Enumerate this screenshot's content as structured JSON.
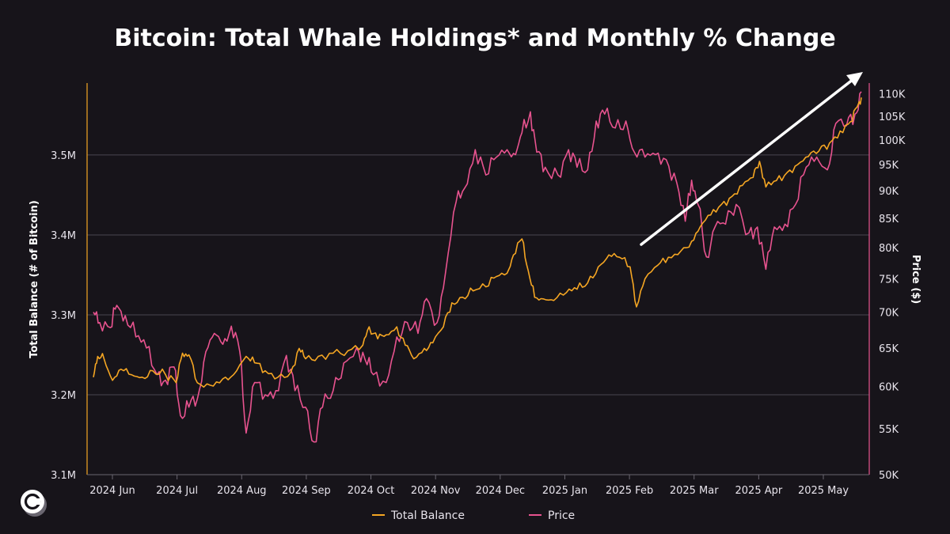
{
  "chart_data": {
    "type": "line",
    "title": "Bitcoin: Total Whale Holdings* and Monthly % Change",
    "ylabel_left": "Total Balance (# of Bitcoin)",
    "ylabel_right": "Price ($)",
    "x_ticks": [
      "2024 Jun",
      "2024 Jul",
      "2024 Aug",
      "2024 Sep",
      "2024 Oct",
      "2024 Nov",
      "2024 Dec",
      "2025 Jan",
      "2025 Feb",
      "2025 Mar",
      "2025 Apr",
      "2025 May"
    ],
    "y_left_ticks": [
      "3.1M",
      "3.2M",
      "3.3M",
      "3.4M",
      "3.5M"
    ],
    "y_left_values": [
      3100000,
      3200000,
      3300000,
      3400000,
      3500000
    ],
    "y_left_range": [
      3100000,
      3590000
    ],
    "y_right_ticks": [
      "50K",
      "55K",
      "60K",
      "65K",
      "70K",
      "75K",
      "80K",
      "85K",
      "90K",
      "95K",
      "100K",
      "105K",
      "110K"
    ],
    "y_right_values": [
      50000,
      55000,
      60000,
      65000,
      70000,
      75000,
      80000,
      85000,
      90000,
      95000,
      100000,
      105000,
      110000
    ],
    "y_right_range": [
      50000,
      112500
    ],
    "y_right_scale": "log",
    "x_range": [
      "2024-05-25",
      "2025-05-22"
    ],
    "grid": "horizontal",
    "legend_position": "bottom-center",
    "annotation": "upward-trend-arrow",
    "series": [
      {
        "name": "Total Balance",
        "axis": "left",
        "color": "#f5a623",
        "points": [
          [
            "2024-05-25",
            3222000
          ],
          [
            "2024-05-27",
            3248000
          ],
          [
            "2024-05-30",
            3245000
          ],
          [
            "2024-06-03",
            3218000
          ],
          [
            "2024-06-07",
            3232000
          ],
          [
            "2024-06-12",
            3225000
          ],
          [
            "2024-06-17",
            3222000
          ],
          [
            "2024-06-22",
            3230000
          ],
          [
            "2024-06-28",
            3225000
          ],
          [
            "2024-07-03",
            3215000
          ],
          [
            "2024-07-06",
            3252000
          ],
          [
            "2024-07-09",
            3250000
          ],
          [
            "2024-07-13",
            3215000
          ],
          [
            "2024-07-19",
            3212000
          ],
          [
            "2024-07-25",
            3220000
          ],
          [
            "2024-07-30",
            3225000
          ],
          [
            "2024-08-05",
            3248000
          ],
          [
            "2024-08-09",
            3240000
          ],
          [
            "2024-08-14",
            3230000
          ],
          [
            "2024-08-20",
            3222000
          ],
          [
            "2024-08-26",
            3228000
          ],
          [
            "2024-08-30",
            3258000
          ],
          [
            "2024-09-02",
            3245000
          ],
          [
            "2024-09-08",
            3248000
          ],
          [
            "2024-09-15",
            3252000
          ],
          [
            "2024-09-22",
            3255000
          ],
          [
            "2024-09-29",
            3262000
          ],
          [
            "2024-10-02",
            3285000
          ],
          [
            "2024-10-06",
            3270000
          ],
          [
            "2024-10-10",
            3275000
          ],
          [
            "2024-10-15",
            3285000
          ],
          [
            "2024-10-19",
            3262000
          ],
          [
            "2024-10-23",
            3245000
          ],
          [
            "2024-10-28",
            3258000
          ],
          [
            "2024-11-01",
            3265000
          ],
          [
            "2024-11-06",
            3285000
          ],
          [
            "2024-11-10",
            3315000
          ],
          [
            "2024-11-15",
            3322000
          ],
          [
            "2024-11-20",
            3330000
          ],
          [
            "2024-11-26",
            3335000
          ],
          [
            "2024-12-01",
            3348000
          ],
          [
            "2024-12-06",
            3352000
          ],
          [
            "2024-12-09",
            3375000
          ],
          [
            "2024-12-13",
            3395000
          ],
          [
            "2024-12-16",
            3355000
          ],
          [
            "2024-12-19",
            3322000
          ],
          [
            "2024-12-23",
            3320000
          ],
          [
            "2024-12-28",
            3318000
          ],
          [
            "2025-01-03",
            3328000
          ],
          [
            "2025-01-08",
            3332000
          ],
          [
            "2025-01-13",
            3340000
          ],
          [
            "2025-01-18",
            3360000
          ],
          [
            "2025-01-23",
            3375000
          ],
          [
            "2025-01-28",
            3372000
          ],
          [
            "2025-02-02",
            3360000
          ],
          [
            "2025-02-05",
            3310000
          ],
          [
            "2025-02-09",
            3345000
          ],
          [
            "2025-02-15",
            3362000
          ],
          [
            "2025-02-20",
            3372000
          ],
          [
            "2025-02-26",
            3380000
          ],
          [
            "2025-03-03",
            3392000
          ],
          [
            "2025-03-07",
            3410000
          ],
          [
            "2025-03-12",
            3425000
          ],
          [
            "2025-03-17",
            3438000
          ],
          [
            "2025-03-22",
            3448000
          ],
          [
            "2025-03-27",
            3462000
          ],
          [
            "2025-04-01",
            3472000
          ],
          [
            "2025-04-04",
            3492000
          ],
          [
            "2025-04-07",
            3460000
          ],
          [
            "2025-04-12",
            3468000
          ],
          [
            "2025-04-17",
            3478000
          ],
          [
            "2025-04-22",
            3488000
          ],
          [
            "2025-04-27",
            3498000
          ],
          [
            "2025-05-02",
            3505000
          ],
          [
            "2025-05-07",
            3515000
          ],
          [
            "2025-05-12",
            3530000
          ],
          [
            "2025-05-17",
            3542000
          ],
          [
            "2025-05-20",
            3560000
          ],
          [
            "2025-05-22",
            3572000
          ]
        ]
      },
      {
        "name": "Price",
        "axis": "right",
        "color": "#e8538f",
        "points": [
          [
            "2024-05-25",
            70000
          ],
          [
            "2024-05-28",
            68500
          ],
          [
            "2024-06-02",
            67800
          ],
          [
            "2024-06-05",
            71000
          ],
          [
            "2024-06-09",
            69500
          ],
          [
            "2024-06-14",
            66500
          ],
          [
            "2024-06-19",
            65000
          ],
          [
            "2024-06-24",
            61500
          ],
          [
            "2024-06-28",
            60800
          ],
          [
            "2024-07-02",
            62500
          ],
          [
            "2024-07-05",
            56500
          ],
          [
            "2024-07-09",
            57500
          ],
          [
            "2024-07-13",
            58500
          ],
          [
            "2024-07-17",
            64500
          ],
          [
            "2024-07-21",
            67000
          ],
          [
            "2024-07-25",
            65500
          ],
          [
            "2024-07-29",
            68000
          ],
          [
            "2024-08-02",
            64500
          ],
          [
            "2024-08-05",
            54500
          ],
          [
            "2024-08-09",
            60500
          ],
          [
            "2024-08-14",
            59000
          ],
          [
            "2024-08-19",
            59500
          ],
          [
            "2024-08-24",
            64000
          ],
          [
            "2024-08-28",
            59500
          ],
          [
            "2024-09-02",
            57500
          ],
          [
            "2024-09-06",
            53500
          ],
          [
            "2024-09-10",
            57500
          ],
          [
            "2024-09-15",
            59500
          ],
          [
            "2024-09-20",
            63000
          ],
          [
            "2024-09-26",
            65000
          ],
          [
            "2024-09-30",
            63500
          ],
          [
            "2024-10-04",
            61500
          ],
          [
            "2024-10-10",
            60500
          ],
          [
            "2024-10-15",
            66500
          ],
          [
            "2024-10-20",
            68500
          ],
          [
            "2024-10-25",
            67000
          ],
          [
            "2024-10-29",
            72000
          ],
          [
            "2024-11-03",
            68500
          ],
          [
            "2024-11-07",
            76000
          ],
          [
            "2024-11-12",
            88000
          ],
          [
            "2024-11-16",
            90500
          ],
          [
            "2024-11-21",
            98000
          ],
          [
            "2024-11-26",
            93000
          ],
          [
            "2024-12-01",
            96500
          ],
          [
            "2024-12-06",
            98000
          ],
          [
            "2024-12-10",
            97000
          ],
          [
            "2024-12-13",
            101500
          ],
          [
            "2024-12-17",
            106000
          ],
          [
            "2024-12-20",
            97500
          ],
          [
            "2024-12-24",
            94500
          ],
          [
            "2024-12-30",
            93000
          ],
          [
            "2025-01-04",
            98000
          ],
          [
            "2025-01-08",
            94500
          ],
          [
            "2025-01-13",
            94000
          ],
          [
            "2025-01-17",
            104000
          ],
          [
            "2025-01-21",
            105500
          ],
          [
            "2025-01-26",
            102500
          ],
          [
            "2025-01-31",
            104000
          ],
          [
            "2025-02-04",
            97500
          ],
          [
            "2025-02-09",
            96500
          ],
          [
            "2025-02-14",
            97000
          ],
          [
            "2025-02-19",
            96000
          ],
          [
            "2025-02-24",
            91500
          ],
          [
            "2025-02-28",
            84500
          ],
          [
            "2025-03-03",
            92000
          ],
          [
            "2025-03-06",
            87500
          ],
          [
            "2025-03-10",
            78500
          ],
          [
            "2025-03-14",
            83500
          ],
          [
            "2025-03-19",
            84000
          ],
          [
            "2025-03-24",
            87500
          ],
          [
            "2025-03-30",
            82500
          ],
          [
            "2025-04-03",
            83500
          ],
          [
            "2025-04-07",
            76500
          ],
          [
            "2025-04-11",
            83500
          ],
          [
            "2025-04-16",
            84000
          ],
          [
            "2025-04-21",
            87500
          ],
          [
            "2025-04-26",
            94500
          ],
          [
            "2025-05-01",
            96500
          ],
          [
            "2025-05-06",
            94000
          ],
          [
            "2025-05-10",
            103500
          ],
          [
            "2025-05-15",
            103000
          ],
          [
            "2025-05-19",
            105500
          ],
          [
            "2025-05-22",
            110500
          ]
        ]
      }
    ]
  }
}
